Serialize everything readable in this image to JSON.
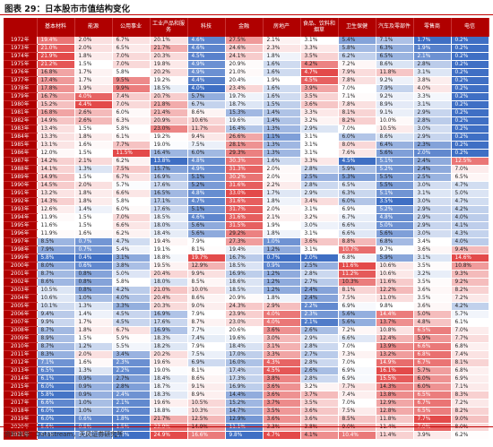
{
  "title": "图表 29：日本股市市值结构变化",
  "source": "资料来源：Datastream，天风证券研究所",
  "colors": {
    "header": "#b00000",
    "high": "#e34a4a",
    "low": "#3f6fc4",
    "mid": "#ffffff"
  },
  "columns": [
    "",
    "基本材料",
    "能源",
    "公用事业",
    "工业产品和服务",
    "科技",
    "金融",
    "房地产",
    "食品、饮料和烟草",
    "卫生保健",
    "汽车及零部件",
    "零售商",
    "电信"
  ],
  "years": [
    "1972年",
    "1973年",
    "1974年",
    "1975年",
    "1976年",
    "1977年",
    "1978年",
    "1979年",
    "1980年",
    "1981年",
    "1982年",
    "1983年",
    "1984年",
    "1985年",
    "1986年",
    "1987年",
    "1988年",
    "1989年",
    "1990年",
    "1991年",
    "1992年",
    "1993年",
    "1994年",
    "1995年",
    "1996年",
    "1997年",
    "1998年",
    "1999年",
    "2000年",
    "2001年",
    "2002年",
    "2003年",
    "2004年",
    "2005年",
    "2006年",
    "2007年",
    "2008年",
    "2009年",
    "2010年",
    "2011年",
    "2012年",
    "2013年",
    "2014年",
    "2015年",
    "2016年",
    "2017年",
    "2018年",
    "2019年",
    "2020年",
    "2021年"
  ],
  "rows": [
    [
      "19.4%",
      "2.0%",
      "6.7%",
      "20.1%",
      "4.6%",
      "27.5%",
      "2.1%",
      "3.1%",
      "5.4%",
      "7.1%",
      "1.7%",
      "0.2%"
    ],
    [
      "21.0%",
      "2.0%",
      "6.5%",
      "21.7%",
      "4.6%",
      "24.6%",
      "2.3%",
      "3.3%",
      "5.8%",
      "6.3%",
      "1.9%",
      "0.2%"
    ],
    [
      "21.9%",
      "1.8%",
      "7.0%",
      "20.3%",
      "4.5%",
      "24.1%",
      "1.8%",
      "3.5%",
      "6.2%",
      "6.5%",
      "2.1%",
      "0.2%"
    ],
    [
      "21.2%",
      "1.5%",
      "7.0%",
      "19.8%",
      "4.9%",
      "20.9%",
      "1.6%",
      "4.2%",
      "7.2%",
      "8.6%",
      "2.8%",
      "0.2%"
    ],
    [
      "16.8%",
      "1.7%",
      "5.8%",
      "20.2%",
      "4.9%",
      "21.0%",
      "1.6%",
      "4.7%",
      "7.9%",
      "11.8%",
      "3.1%",
      "0.2%"
    ],
    [
      "17.4%",
      "1.7%",
      "9.5%",
      "19.2%",
      "4.4%",
      "20.4%",
      "1.9%",
      "4.5%",
      "7.8%",
      "9.2%",
      "3.8%",
      "0.2%"
    ],
    [
      "17.8%",
      "1.9%",
      "9.9%",
      "18.5%",
      "4.0%",
      "23.4%",
      "1.6%",
      "3.9%",
      "7.0%",
      "7.9%",
      "4.0%",
      "0.2%"
    ],
    [
      "16.7%",
      "4.0%",
      "7.4%",
      "20.7%",
      "5.7%",
      "19.7%",
      "1.6%",
      "3.5%",
      "7.1%",
      "9.2%",
      "3.3%",
      "0.2%"
    ],
    [
      "15.2%",
      "4.4%",
      "7.0%",
      "21.8%",
      "6.7%",
      "18.7%",
      "1.5%",
      "3.6%",
      "7.8%",
      "8.9%",
      "3.1%",
      "0.2%"
    ],
    [
      "16.8%",
      "2.6%",
      "6.0%",
      "21.4%",
      "8.6%",
      "15.3%",
      "1.4%",
      "3.3%",
      "8.1%",
      "9.1%",
      "2.9%",
      "0.2%"
    ],
    [
      "14.9%",
      "2.6%",
      "6.3%",
      "20.9%",
      "10.6%",
      "19.6%",
      "1.4%",
      "3.2%",
      "8.2%",
      "10.0%",
      "2.8%",
      "0.2%"
    ],
    [
      "13.4%",
      "1.5%",
      "5.8%",
      "23.0%",
      "11.7%",
      "16.4%",
      "1.3%",
      "2.9%",
      "7.0%",
      "10.5%",
      "3.0%",
      "0.2%"
    ],
    [
      "13.3%",
      "1.8%",
      "6.1%",
      "19.2%",
      "9.4%",
      "26.6%",
      "1.1%",
      "3.1%",
      "6.0%",
      "8.6%",
      "2.9%",
      "0.2%"
    ],
    [
      "13.1%",
      "1.6%",
      "7.7%",
      "19.0%",
      "7.5%",
      "28.1%",
      "1.3%",
      "3.1%",
      "8.0%",
      "6.4%",
      "2.3%",
      "0.2%"
    ],
    [
      "12.0%",
      "1.5%",
      "11.5%",
      "16.4%",
      "6.0%",
      "29.3%",
      "1.3%",
      "3.1%",
      "7.6%",
      "5.6%",
      "2.0%",
      "0.2%"
    ],
    [
      "14.2%",
      "2.1%",
      "6.2%",
      "13.8%",
      "4.8%",
      "30.3%",
      "1.6%",
      "3.3%",
      "4.5%",
      "5.1%",
      "2.4%",
      "12.5%"
    ],
    [
      "14.1%",
      "1.3%",
      "7.5%",
      "15.7%",
      "4.9%",
      "31.3%",
      "2.0%",
      "2.8%",
      "5.9%",
      "5.2%",
      "2.4%",
      "7.0%"
    ],
    [
      "14.9%",
      "1.5%",
      "6.7%",
      "16.9%",
      "5.1%",
      "30.2%",
      "2.0%",
      "2.5%",
      "5.3%",
      "5.5%",
      "2.5%",
      "6.5%"
    ],
    [
      "14.5%",
      "2.0%",
      "5.7%",
      "17.6%",
      "5.2%",
      "31.6%",
      "2.2%",
      "2.8%",
      "6.5%",
      "5.5%",
      "3.0%",
      "4.7%"
    ],
    [
      "13.2%",
      "1.8%",
      "6.6%",
      "16.5%",
      "4.8%",
      "33.0%",
      "1.7%",
      "2.9%",
      "6.3%",
      "5.1%",
      "3.1%",
      "5.0%"
    ],
    [
      "14.3%",
      "1.8%",
      "5.8%",
      "17.1%",
      "4.7%",
      "31.6%",
      "1.8%",
      "3.4%",
      "6.0%",
      "3.5%",
      "3.0%",
      "4.7%"
    ],
    [
      "12.6%",
      "1.4%",
      "6.0%",
      "17.6%",
      "5.1%",
      "31.7%",
      "2.0%",
      "3.1%",
      "6.9%",
      "5.2%",
      "2.9%",
      "4.2%"
    ],
    [
      "11.9%",
      "1.5%",
      "7.0%",
      "18.5%",
      "4.6%",
      "31.6%",
      "2.1%",
      "3.2%",
      "6.7%",
      "4.8%",
      "2.9%",
      "4.0%"
    ],
    [
      "11.6%",
      "1.5%",
      "6.6%",
      "18.0%",
      "5.6%",
      "31.5%",
      "1.9%",
      "3.0%",
      "6.6%",
      "5.0%",
      "2.9%",
      "4.1%"
    ],
    [
      "11.9%",
      "1.6%",
      "6.2%",
      "18.4%",
      "5.6%",
      "29.2%",
      "1.8%",
      "3.1%",
      "6.6%",
      "5.6%",
      "3.0%",
      "4.3%"
    ],
    [
      "8.5%",
      "0.7%",
      "4.7%",
      "19.4%",
      "7.9%",
      "27.3%",
      "1.0%",
      "3.6%",
      "8.8%",
      "6.8%",
      "3.4%",
      "4.0%"
    ],
    [
      "7.9%",
      "0.7%",
      "5.4%",
      "19.1%",
      "8.1%",
      "19.4%",
      "1.2%",
      "3.1%",
      "10.7%",
      "9.7%",
      "3.6%",
      "9.4%"
    ],
    [
      "5.8%",
      "0.4%",
      "3.1%",
      "18.8%",
      "19.7%",
      "16.7%",
      "0.7%",
      "2.0%",
      "6.8%",
      "5.9%",
      "3.1%",
      "14.6%"
    ],
    [
      "8.0%",
      "0.6%",
      "3.8%",
      "19.5%",
      "12.9%",
      "18.5%",
      "0.9%",
      "2.5%",
      "11.6%",
      "10.6%",
      "3.5%",
      "10.8%"
    ],
    [
      "8.7%",
      "0.8%",
      "5.0%",
      "20.4%",
      "9.9%",
      "16.9%",
      "1.2%",
      "2.8%",
      "11.2%",
      "10.6%",
      "3.2%",
      "9.3%"
    ],
    [
      "8.6%",
      "0.8%",
      "5.8%",
      "18.0%",
      "8.5%",
      "18.6%",
      "1.2%",
      "2.7%",
      "10.3%",
      "11.6%",
      "3.5%",
      "9.2%"
    ],
    [
      "10.5%",
      "0.8%",
      "4.2%",
      "21.0%",
      "10.0%",
      "18.5%",
      "1.2%",
      "2.4%",
      "8.1%",
      "12.2%",
      "3.6%",
      "8.2%"
    ],
    [
      "10.6%",
      "1.0%",
      "4.0%",
      "20.4%",
      "8.6%",
      "20.9%",
      "1.8%",
      "2.4%",
      "7.5%",
      "11.0%",
      "3.5%",
      "7.2%"
    ],
    [
      "10.1%",
      "1.3%",
      "3.3%",
      "20.3%",
      "9.0%",
      "24.3%",
      "2.9%",
      "2.2%",
      "6.9%",
      "9.8%",
      "3.6%",
      "4.2%"
    ],
    [
      "9.4%",
      "1.4%",
      "4.5%",
      "16.9%",
      "7.9%",
      "23.9%",
      "4.0%",
      "2.3%",
      "5.6%",
      "14.4%",
      "5.0%",
      "5.7%"
    ],
    [
      "9.9%",
      "1.7%",
      "4.5%",
      "17.6%",
      "8.7%",
      "23.0%",
      "4.0%",
      "2.1%",
      "5.6%",
      "13.7%",
      "4.8%",
      "6.1%"
    ],
    [
      "8.7%",
      "1.8%",
      "6.7%",
      "16.9%",
      "7.7%",
      "20.6%",
      "3.6%",
      "2.6%",
      "7.2%",
      "10.8%",
      "6.5%",
      "7.0%"
    ],
    [
      "8.9%",
      "1.5%",
      "5.9%",
      "18.3%",
      "7.4%",
      "19.6%",
      "3.0%",
      "2.9%",
      "6.6%",
      "12.4%",
      "5.9%",
      "7.7%"
    ],
    [
      "8.7%",
      "1.2%",
      "5.5%",
      "18.2%",
      "7.9%",
      "18.4%",
      "3.1%",
      "2.8%",
      "7.0%",
      "13.9%",
      "6.6%",
      "6.8%"
    ],
    [
      "8.3%",
      "2.0%",
      "3.4%",
      "20.2%",
      "7.5%",
      "17.0%",
      "3.3%",
      "2.7%",
      "7.3%",
      "13.2%",
      "6.8%",
      "7.4%"
    ],
    [
      "7.1%",
      "1.6%",
      "2.3%",
      "19.6%",
      "6.9%",
      "16.0%",
      "4.3%",
      "2.8%",
      "7.0%",
      "14.9%",
      "6.7%",
      "8.1%"
    ],
    [
      "6.5%",
      "1.3%",
      "2.2%",
      "19.0%",
      "8.1%",
      "17.4%",
      "4.5%",
      "2.6%",
      "6.9%",
      "16.1%",
      "5.7%",
      "6.8%"
    ],
    [
      "6.1%",
      "0.9%",
      "2.7%",
      "18.4%",
      "8.6%",
      "17.3%",
      "3.8%",
      "2.8%",
      "6.9%",
      "15.5%",
      "6.0%",
      "6.9%"
    ],
    [
      "6.0%",
      "0.9%",
      "2.8%",
      "18.7%",
      "9.1%",
      "16.9%",
      "3.6%",
      "3.2%",
      "7.7%",
      "14.3%",
      "6.0%",
      "7.1%"
    ],
    [
      "5.8%",
      "0.9%",
      "2.4%",
      "18.3%",
      "8.9%",
      "14.4%",
      "3.6%",
      "3.7%",
      "7.4%",
      "13.8%",
      "6.5%",
      "8.3%"
    ],
    [
      "6.6%",
      "1.0%",
      "2.1%",
      "19.6%",
      "10.5%",
      "15.2%",
      "3.7%",
      "3.5%",
      "7.0%",
      "12.9%",
      "6.7%",
      "7.2%"
    ],
    [
      "6.0%",
      "1.0%",
      "2.0%",
      "18.8%",
      "10.3%",
      "14.7%",
      "3.5%",
      "3.6%",
      "7.5%",
      "12.8%",
      "6.5%",
      "8.2%"
    ],
    [
      "6.0%",
      "0.6%",
      "1.8%",
      "21.7%",
      "12.5%",
      "12.9%",
      "3.6%",
      "3.6%",
      "8.5%",
      "11.8%",
      "7.7%",
      "9.0%"
    ],
    [
      "5.6%",
      "0.5%",
      "1.5%",
      "23.9%",
      "14.9%",
      "11.1%",
      "3.3%",
      "3.8%",
      "9.0%",
      "11.4%",
      "7.0%",
      "8.0%"
    ],
    [
      "6.1%",
      "0.7%",
      "1.3%",
      "24.9%",
      "16.6%",
      "9.8%",
      "4.7%",
      "4.1%",
      "10.4%",
      "11.4%",
      "3.9%",
      "6.2%"
    ]
  ]
}
